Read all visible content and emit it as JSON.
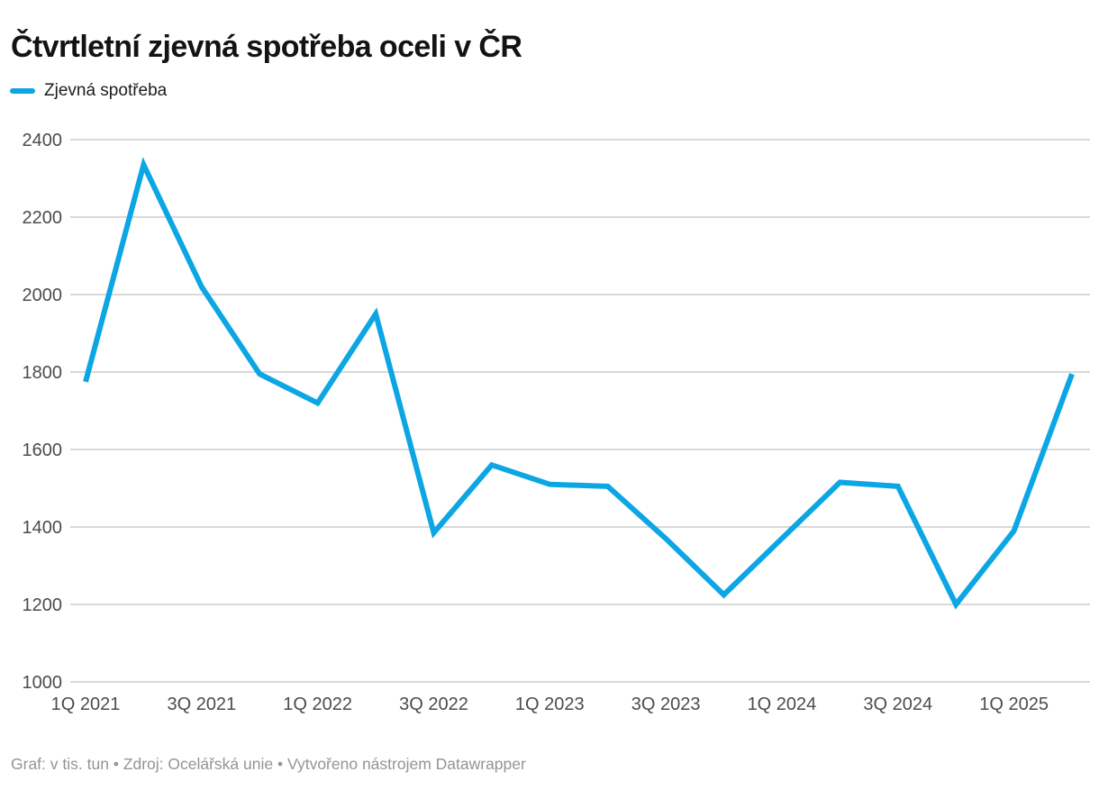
{
  "header": {
    "title": "Čtvrtletní zjevná spotřeba oceli v ČR"
  },
  "legend": {
    "label": "Zjevná spotřeba",
    "swatch_color": "#0ca6e4"
  },
  "chart_data": {
    "type": "line",
    "title": "Čtvrtletní zjevná spotřeba oceli v ČR",
    "unit": "tis. tun",
    "categories": [
      "1Q 2021",
      "2Q 2021",
      "3Q 2021",
      "4Q 2021",
      "1Q 2022",
      "2Q 2022",
      "3Q 2022",
      "4Q 2022",
      "1Q 2023",
      "2Q 2023",
      "3Q 2023",
      "4Q 2023",
      "1Q 2024",
      "2Q 2024",
      "3Q 2024",
      "4Q 2024",
      "1Q 2025",
      "2Q 2025"
    ],
    "series": [
      {
        "name": "Zjevná spotřeba",
        "values": [
          1775,
          2335,
          2020,
          1795,
          1720,
          1950,
          1385,
          1560,
          1510,
          1505,
          1370,
          1225,
          1370,
          1515,
          1505,
          1200,
          1390,
          1795
        ]
      }
    ],
    "xlabel": "",
    "ylabel": "",
    "ylim": [
      1000,
      2400
    ],
    "yticks": [
      1000,
      1200,
      1400,
      1600,
      1800,
      2000,
      2200,
      2400
    ],
    "xtick_labels": [
      "1Q 2021",
      "3Q 2021",
      "1Q 2022",
      "3Q 2022",
      "1Q 2023",
      "3Q 2023",
      "1Q 2024",
      "3Q 2024",
      "1Q 2025"
    ],
    "xtick_every": 2,
    "grid": "horizontal",
    "gridline_color": "#d9d9d9",
    "tick_label_color": "#4c4c4c",
    "line_color": "#0ca6e4",
    "legend_position": "top-left"
  },
  "footer": {
    "text": "Graf: v tis. tun • Zdroj: Ocelářská unie • Vytvořeno nástrojem Datawrapper"
  }
}
